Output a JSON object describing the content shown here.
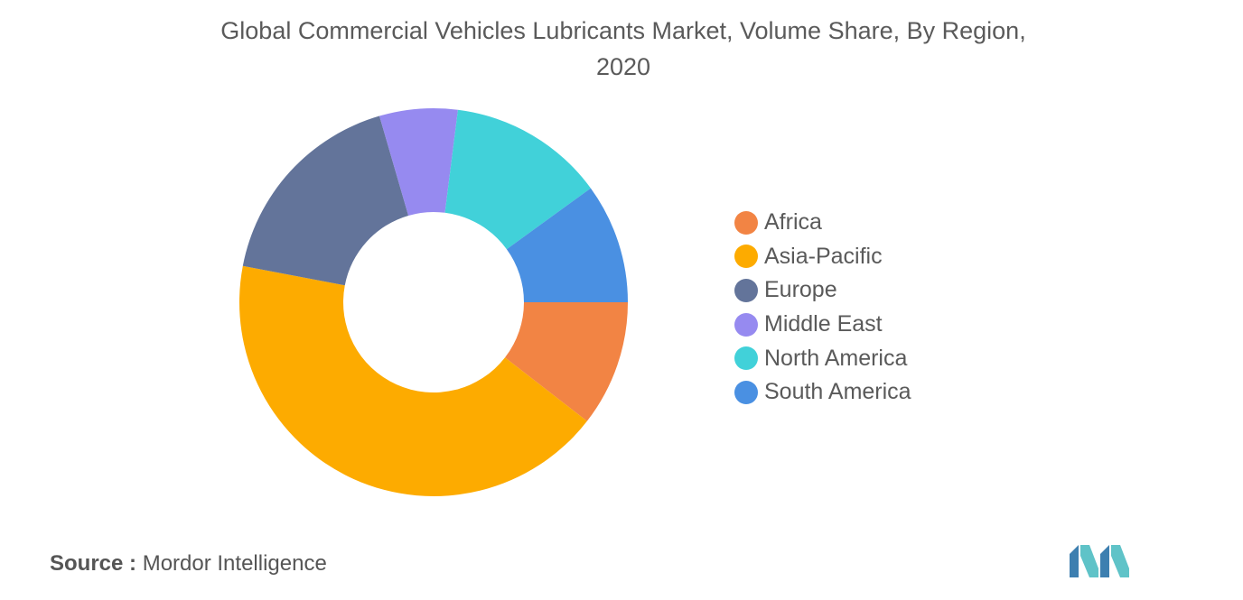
{
  "chart_data": {
    "type": "pie",
    "variant": "donut",
    "title_lines": [
      "Global Commercial Vehicles Lubricants Market, Volume Share, By Region,",
      "2020"
    ],
    "categories": [
      "Africa",
      "Asia-Pacific",
      "Europe",
      "Middle East",
      "North America",
      "South America"
    ],
    "values": [
      10.5,
      42.5,
      17.5,
      6.5,
      13.0,
      10.0
    ],
    "colors": [
      "#f28444",
      "#fdab00",
      "#63749a",
      "#968af0",
      "#41d1d9",
      "#4a90e2"
    ],
    "start_angle_deg": 90,
    "direction": "clockwise",
    "legend_position": "right"
  },
  "legend": {
    "items": [
      {
        "label": "Africa",
        "color": "#f28444"
      },
      {
        "label": "Asia-Pacific",
        "color": "#fdab00"
      },
      {
        "label": "Europe",
        "color": "#63749a"
      },
      {
        "label": "Middle East",
        "color": "#968af0"
      },
      {
        "label": "North America",
        "color": "#41d1d9"
      },
      {
        "label": "South America",
        "color": "#4a90e2"
      }
    ]
  },
  "source": {
    "label": "Source :",
    "value": "Mordor Intelligence"
  },
  "logo": {
    "icon": "mordor-intelligence-logo-icon",
    "colors": [
      "#3d7fb0",
      "#5fc3c8"
    ]
  }
}
